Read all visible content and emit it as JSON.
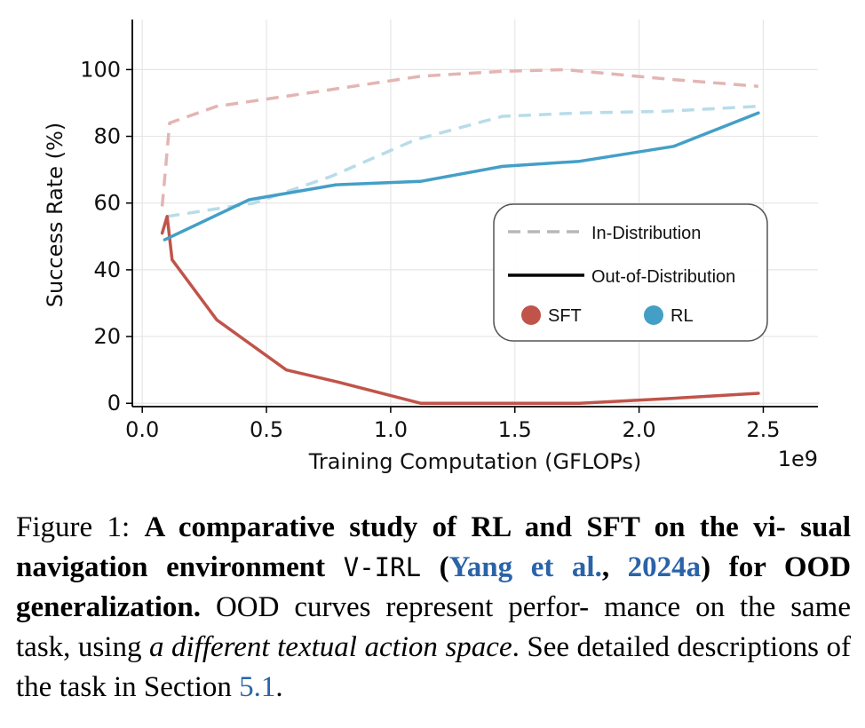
{
  "colors": {
    "sft": "#c0544a",
    "rl": "#449fc7",
    "sft_light": "#e3b5b3",
    "rl_light": "#b8dce9",
    "legend_dash": "#b8b8b8",
    "grid": "#e6e6e6"
  },
  "chart_data": {
    "type": "line",
    "xlabel": "Training Computation (GFLOPs)",
    "ylabel": "Success Rate (%)",
    "x_scale_label": "1e9",
    "xlim": [
      -0.04,
      2.72
    ],
    "ylim": [
      -1,
      115
    ],
    "xticks": [
      0.0,
      0.5,
      1.0,
      1.5,
      2.0,
      2.5
    ],
    "xtick_labels": [
      "0.0",
      "0.5",
      "1.0",
      "1.5",
      "2.0",
      "2.5"
    ],
    "yticks": [
      0,
      20,
      40,
      60,
      80,
      100
    ],
    "ytick_labels": [
      "0",
      "20",
      "40",
      "60",
      "80",
      "100"
    ],
    "grid": true,
    "series": [
      {
        "name": "SFT In-Distribution",
        "method": "SFT",
        "split": "In-Distribution",
        "x": [
          0.08,
          0.11,
          0.3,
          0.58,
          1.12,
          1.45,
          1.7,
          2.14,
          2.48
        ],
        "y": [
          59,
          84,
          89,
          92,
          98,
          99.5,
          100,
          97,
          95
        ]
      },
      {
        "name": "RL In-Distribution",
        "method": "RL",
        "split": "In-Distribution",
        "x": [
          0.1,
          0.45,
          0.76,
          1.1,
          1.45,
          1.76,
          2.1,
          2.48
        ],
        "y": [
          56,
          60,
          68,
          79,
          86,
          87,
          87.5,
          89
        ]
      },
      {
        "name": "SFT Out-of-Distribution",
        "method": "SFT",
        "split": "Out-of-Distribution",
        "x": [
          0.08,
          0.1,
          0.12,
          0.3,
          0.58,
          0.78,
          1.12,
          1.45,
          1.76,
          2.14,
          2.48
        ],
        "y": [
          51,
          56,
          43,
          25,
          10,
          6.5,
          0,
          0,
          0,
          1.5,
          3
        ]
      },
      {
        "name": "RL Out-of-Distribution",
        "method": "RL",
        "split": "Out-of-Distribution",
        "x": [
          0.09,
          0.43,
          0.78,
          1.12,
          1.45,
          1.76,
          2.14,
          2.48
        ],
        "y": [
          49,
          61,
          65.5,
          66.5,
          71,
          72.5,
          77,
          87
        ]
      }
    ],
    "legend": {
      "position": "center-right",
      "line_styles": [
        "In-Distribution",
        "Out-of-Distribution"
      ],
      "methods": [
        "SFT",
        "RL"
      ]
    }
  },
  "caption": {
    "label": "Figure 1:",
    "bold_1": "A comparative study of RL and SFT on the vi-",
    "bold_2": "sual navigation environment",
    "code": "V-IRL",
    "paren_open": "(",
    "cite_author": "Yang et al.",
    "cite_sep": ", ",
    "cite_year": "2024a",
    "paren_close": ")",
    "bold_3": "for OOD generalization.",
    "text_1": "OOD curves represent perfor-",
    "text_2": "mance on the same task, using",
    "italic_1": "a different textual action",
    "italic_2": "space",
    "text_3": ". See detailed descriptions of the task in Section",
    "section_ref": "5.1",
    "text_end": "."
  }
}
